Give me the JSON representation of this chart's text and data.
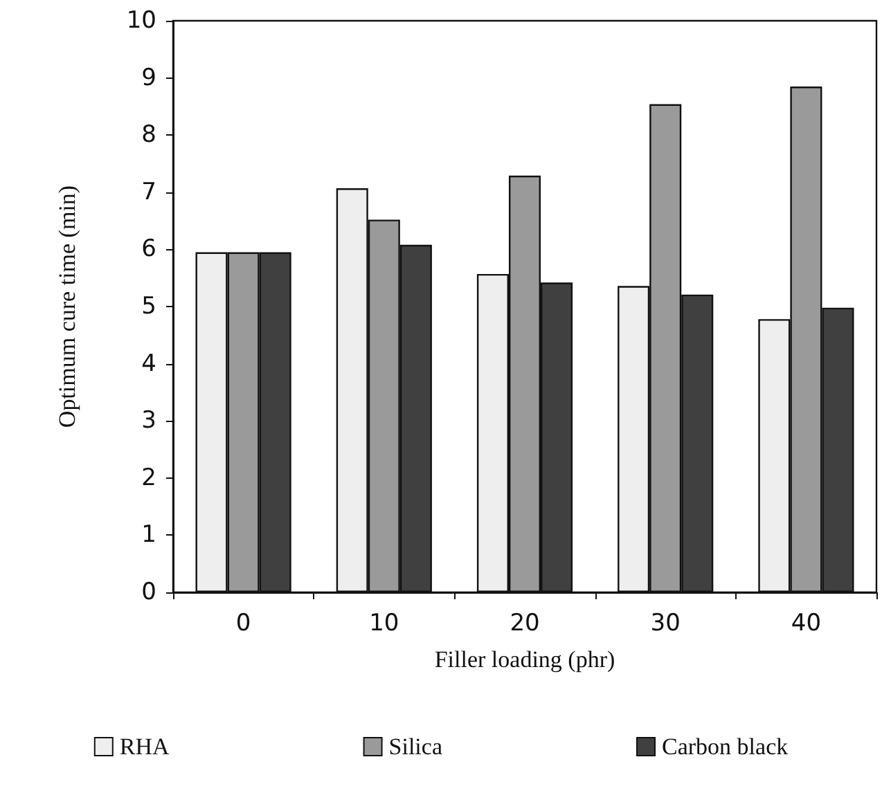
{
  "chart_data": {
    "type": "bar",
    "xlabel": "Filler loading (phr)",
    "ylabel": "Optimum cure time (min)",
    "categories": [
      "0",
      "10",
      "20",
      "30",
      "40"
    ],
    "series": [
      {
        "name": "RHA",
        "color": "#eeeeee",
        "values": [
          5.95,
          7.07,
          5.57,
          5.36,
          4.78
        ]
      },
      {
        "name": "Silica",
        "color": "#9a9a9a",
        "values": [
          5.95,
          6.52,
          7.29,
          8.54,
          8.85
        ]
      },
      {
        "name": "Carbon black",
        "color": "#404040",
        "values": [
          5.95,
          6.08,
          5.42,
          5.21,
          4.98
        ]
      }
    ],
    "ylim": [
      0,
      10
    ],
    "yticks": [
      0,
      1,
      2,
      3,
      4,
      5,
      6,
      7,
      8,
      9,
      10
    ],
    "grid": false,
    "legend": "bottom"
  }
}
